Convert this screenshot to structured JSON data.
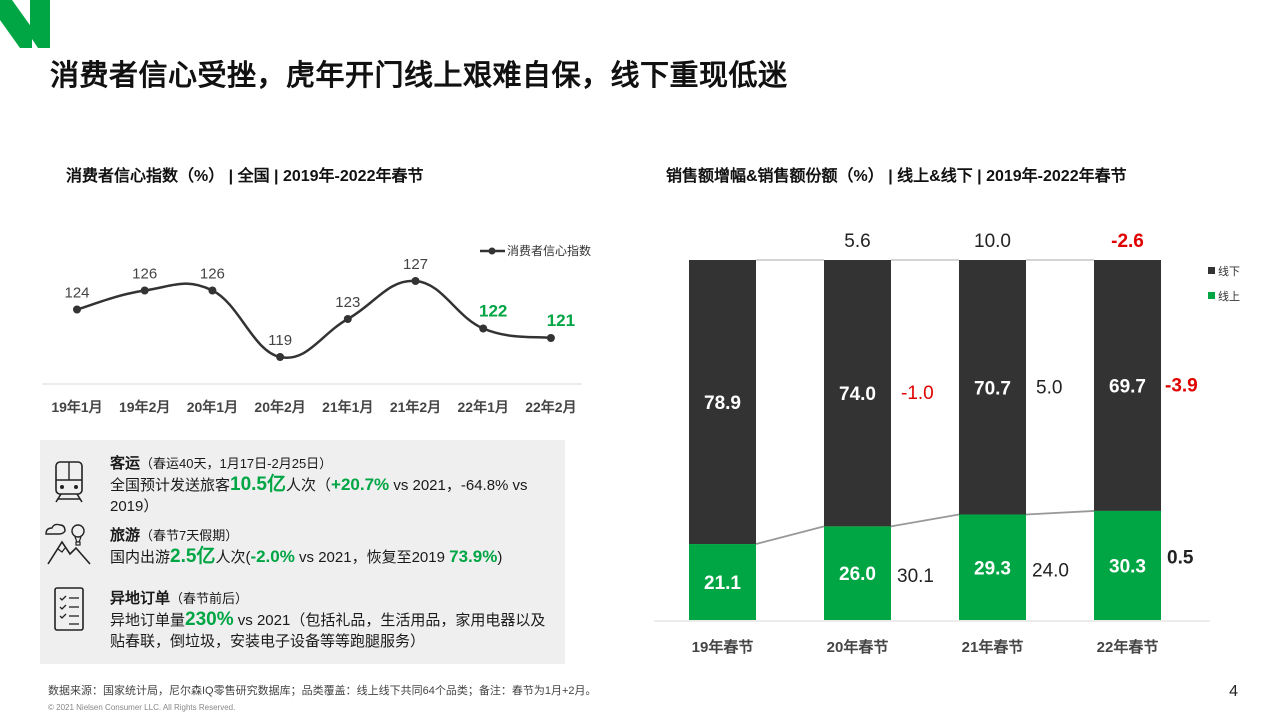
{
  "page": {
    "title": "消费者信心受挫，虎年开门线上艰难自保，线下重现低迷",
    "page_number": "4",
    "footer": "数据来源：国家统计局，尼尔森IQ零售研究数据库；品类覆盖：线上线下共同64个品类；备注：春节为1月+2月。",
    "copyright": "© 2021 Nielsen Consumer LLC. All Rights Reserved.",
    "accent_color": "#00a544",
    "dark_color": "#333333",
    "negative_color": "#e00000"
  },
  "left_chart": {
    "subtitle": "消费者信心指数（%） | 全国 | 2019年-2022年春节"
  },
  "right_chart": {
    "subtitle": "销售额增幅&销售额份额（%） | 线上&线下 | 2019年-2022年春节"
  },
  "chart_data": [
    {
      "type": "line",
      "categories": [
        "19年1月",
        "19年2月",
        "20年1月",
        "20年2月",
        "21年1月",
        "21年2月",
        "22年1月",
        "22年2月"
      ],
      "series": [
        {
          "name": "消费者信心指数",
          "values": [
            124,
            126,
            126,
            119,
            123,
            127,
            122,
            121
          ],
          "highlight_last": 2
        }
      ],
      "legend": "top-right",
      "grid": false
    },
    {
      "type": "bar",
      "stacked": true,
      "categories": [
        "19年春节",
        "20年春节",
        "21年春节",
        "22年春节"
      ],
      "series": [
        {
          "name": "线下",
          "values": [
            78.9,
            74.0,
            70.7,
            69.7
          ],
          "color": "#333333"
        },
        {
          "name": "线上",
          "values": [
            21.1,
            26.0,
            29.3,
            30.3
          ],
          "color": "#00a544"
        }
      ],
      "total_growth_labels": [
        "5.6",
        "10.0",
        "-2.6"
      ],
      "offline_growth_labels": [
        "-1.0",
        "5.0",
        "-3.9"
      ],
      "online_growth_labels": [
        "30.1",
        "24.0",
        "0.5"
      ],
      "legend": "top-right"
    }
  ],
  "info": {
    "transport": {
      "head": "客运",
      "note": "（春运40天，1月17日-2月25日）",
      "t1": "全国预计发送旅客",
      "v1": "10.5亿",
      "t2": "人次（",
      "v2": "+20.7%",
      "t3": " vs 2021，-64.8% vs 2019）"
    },
    "travel": {
      "head": "旅游",
      "note": "（春节7天假期）",
      "t1": "国内出游",
      "v1": "2.5亿",
      "t2": "人次(",
      "v2": "-2.0%",
      "t3": " vs 2021，恢复至2019 ",
      "v3": "73.9%",
      "t4": ")"
    },
    "orders": {
      "head": "异地订单",
      "note": "（春节前后）",
      "t1": "异地订单量",
      "v1": "230%",
      "t2": " vs 2021（包括礼品，生活用品，家用电器以及贴春联，倒垃圾，安装电子设备等等跑腿服务）"
    }
  }
}
